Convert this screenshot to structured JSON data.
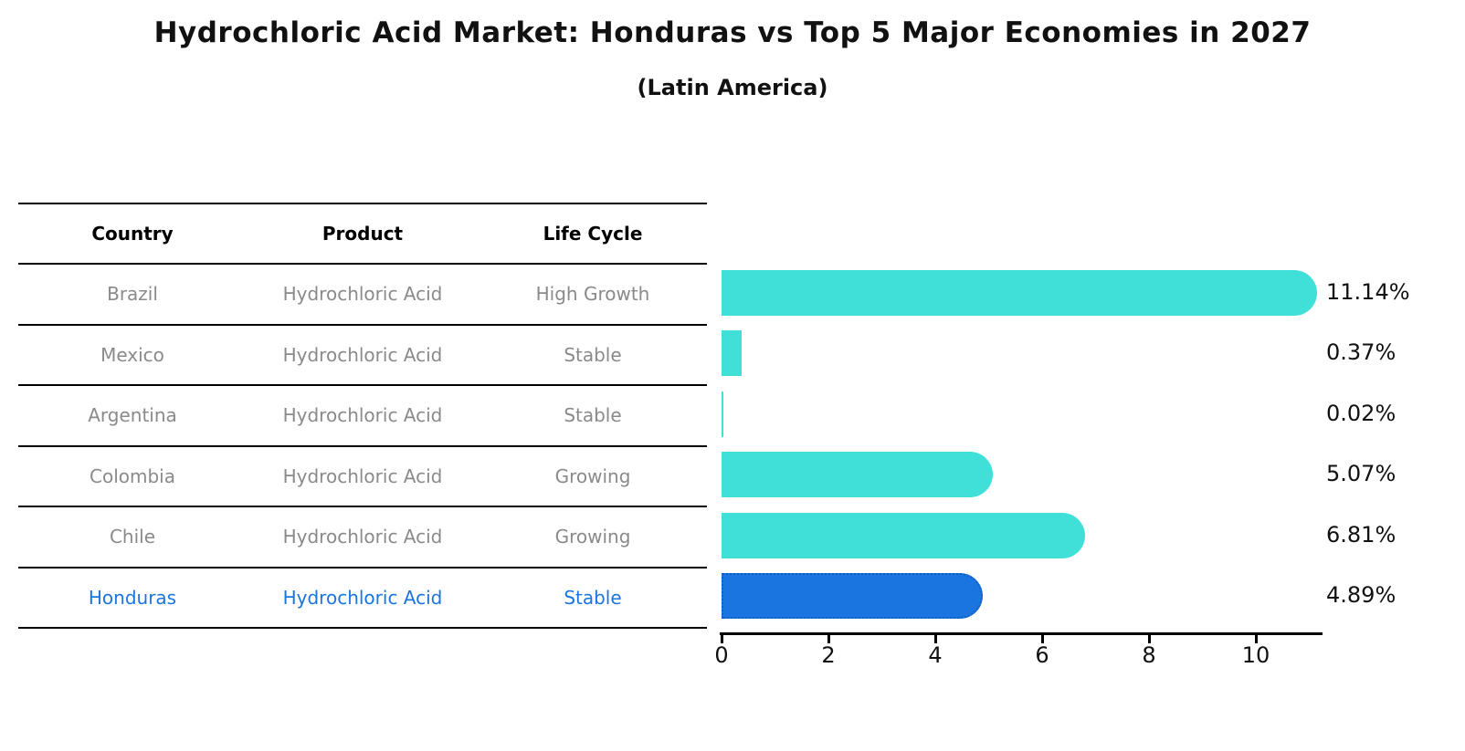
{
  "title": "Hydrochloric Acid Market: Honduras vs Top 5 Major Economies in 2027",
  "subtitle": "(Latin America)",
  "table": {
    "headers": {
      "country": "Country",
      "product": "Product",
      "life_cycle": "Life Cycle"
    }
  },
  "chart_data": {
    "type": "bar",
    "orientation": "horizontal",
    "title": "Hydrochloric Acid Market: Honduras vs Top 5 Major Economies in 2027",
    "subtitle": "(Latin America)",
    "xlabel": "",
    "ylabel": "",
    "xlim": [
      0,
      11.23
    ],
    "x_ticks": [
      0,
      2,
      4,
      6,
      8,
      10
    ],
    "grid": false,
    "legend": false,
    "value_unit": "%",
    "rows": [
      {
        "country": "Brazil",
        "product": "Hydrochloric Acid",
        "life_cycle": "High Growth",
        "value": 11.14,
        "value_label": "11.14%",
        "highlight": false
      },
      {
        "country": "Mexico",
        "product": "Hydrochloric Acid",
        "life_cycle": "Stable",
        "value": 0.37,
        "value_label": "0.37%",
        "highlight": false
      },
      {
        "country": "Argentina",
        "product": "Hydrochloric Acid",
        "life_cycle": "Stable",
        "value": 0.02,
        "value_label": "0.02%",
        "highlight": false
      },
      {
        "country": "Colombia",
        "product": "Hydrochloric Acid",
        "life_cycle": "Growing",
        "value": 5.07,
        "value_label": "5.07%",
        "highlight": false
      },
      {
        "country": "Chile",
        "product": "Hydrochloric Acid",
        "life_cycle": "Growing",
        "value": 6.81,
        "value_label": "6.81%",
        "highlight": false
      },
      {
        "country": "Honduras",
        "product": "Hydrochloric Acid",
        "life_cycle": "Stable",
        "value": 4.89,
        "value_label": "4.89%",
        "highlight": true
      }
    ],
    "colors": {
      "bar": "#40e0d8",
      "highlight_bar": "#1b75e0",
      "highlight_border": "#0f5fc4",
      "highlight_text": "#1b75e0",
      "table_text": "#8a8a8a",
      "header_text": "#000000"
    }
  }
}
